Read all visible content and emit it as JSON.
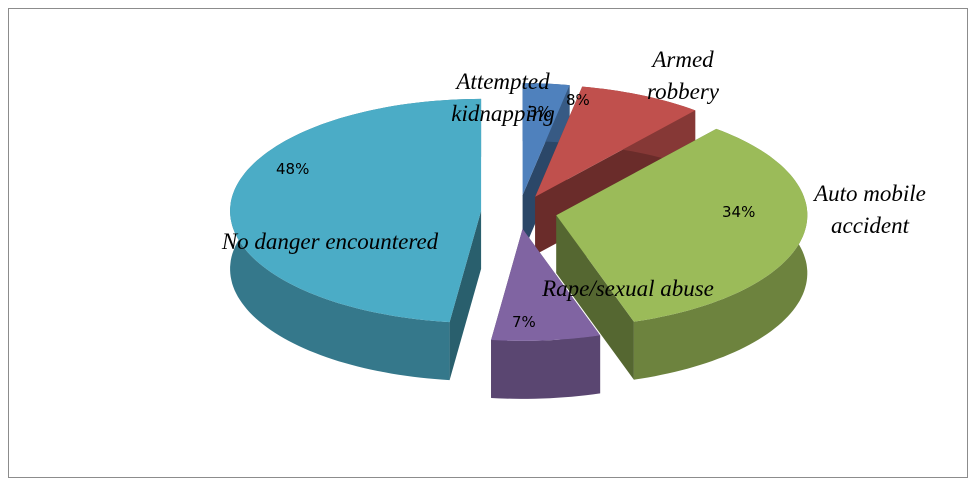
{
  "chart_data": {
    "type": "pie",
    "categories": [
      "Attempted kidnapping",
      "Armed robbery",
      "Auto mobile accident",
      "Rape/sexual abuse",
      "No danger encountered"
    ],
    "values": [
      3,
      8,
      34,
      7,
      48
    ],
    "value_labels": [
      "3%",
      "8%",
      "34%",
      "7%",
      "48%"
    ],
    "colors": [
      "#4f81bd",
      "#c0504d",
      "#9bbb59",
      "#8064a2",
      "#4bacc6"
    ]
  }
}
